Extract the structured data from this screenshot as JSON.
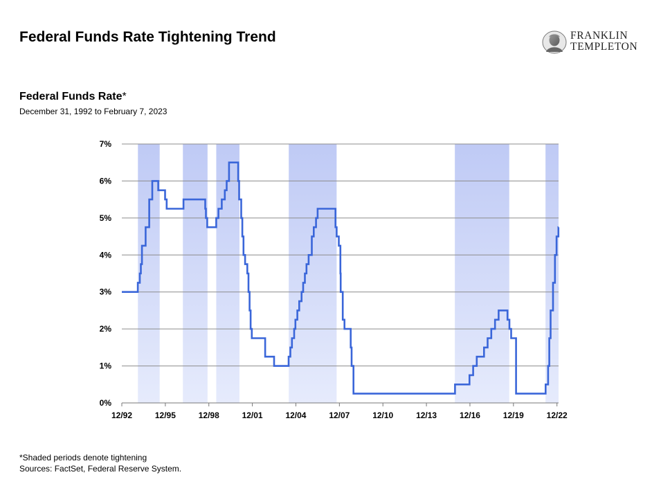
{
  "header": {
    "title": "Federal Funds Rate Tightening Trend",
    "logo_line1": "FRANKLIN",
    "logo_line2": "TEMPLETON"
  },
  "chart_data": {
    "type": "line",
    "title": "Federal Funds Rate",
    "title_suffix": "*",
    "subtitle": "December 31, 1992 to February 7, 2023",
    "xlabel": "",
    "ylabel": "",
    "xlim": [
      1992.99,
      2023.1
    ],
    "ylim": [
      0,
      7
    ],
    "grid": true,
    "line_color": "#3a66d9",
    "shade_color": "#bfcaf5",
    "x_ticks": [
      1992.99,
      1995.99,
      1998.99,
      2001.99,
      2004.99,
      2007.99,
      2010.99,
      2013.99,
      2016.99,
      2019.99,
      2022.99
    ],
    "x_tick_labels": [
      "12/92",
      "12/95",
      "12/98",
      "12/01",
      "12/04",
      "12/07",
      "12/10",
      "12/13",
      "12/16",
      "12/19",
      "12/22"
    ],
    "y_ticks": [
      0,
      1,
      2,
      3,
      4,
      5,
      6,
      7
    ],
    "y_tick_labels": [
      "0%",
      "1%",
      "2%",
      "3%",
      "4%",
      "5%",
      "6%",
      "7%"
    ],
    "tightening_periods": [
      [
        1994.1,
        1995.6
      ],
      [
        1997.2,
        1998.9
      ],
      [
        1999.5,
        2001.1
      ],
      [
        2004.5,
        2007.8
      ],
      [
        2015.95,
        2019.7
      ],
      [
        2022.2,
        2023.1
      ]
    ],
    "series": [
      {
        "points": [
          [
            1992.99,
            3.0
          ],
          [
            1994.09,
            3.25
          ],
          [
            1994.23,
            3.5
          ],
          [
            1994.3,
            3.75
          ],
          [
            1994.38,
            4.25
          ],
          [
            1994.63,
            4.75
          ],
          [
            1994.88,
            5.5
          ],
          [
            1995.09,
            6.0
          ],
          [
            1995.5,
            5.75
          ],
          [
            1995.97,
            5.5
          ],
          [
            1996.08,
            5.25
          ],
          [
            1997.24,
            5.5
          ],
          [
            1998.74,
            5.25
          ],
          [
            1998.79,
            5.0
          ],
          [
            1998.88,
            4.75
          ],
          [
            1999.5,
            5.0
          ],
          [
            1999.65,
            5.25
          ],
          [
            1999.88,
            5.5
          ],
          [
            2000.09,
            5.75
          ],
          [
            2000.22,
            6.0
          ],
          [
            2000.38,
            6.5
          ],
          [
            2001.01,
            6.0
          ],
          [
            2001.08,
            5.5
          ],
          [
            2001.22,
            5.0
          ],
          [
            2001.3,
            4.5
          ],
          [
            2001.38,
            4.0
          ],
          [
            2001.49,
            3.75
          ],
          [
            2001.64,
            3.5
          ],
          [
            2001.72,
            3.0
          ],
          [
            2001.8,
            2.5
          ],
          [
            2001.87,
            2.0
          ],
          [
            2001.95,
            1.75
          ],
          [
            2002.87,
            1.25
          ],
          [
            2003.49,
            1.0
          ],
          [
            2004.49,
            1.25
          ],
          [
            2004.61,
            1.5
          ],
          [
            2004.72,
            1.75
          ],
          [
            2004.87,
            2.0
          ],
          [
            2004.96,
            2.25
          ],
          [
            2005.09,
            2.5
          ],
          [
            2005.22,
            2.75
          ],
          [
            2005.38,
            3.0
          ],
          [
            2005.49,
            3.25
          ],
          [
            2005.61,
            3.5
          ],
          [
            2005.72,
            3.75
          ],
          [
            2005.87,
            4.0
          ],
          [
            2006.09,
            4.5
          ],
          [
            2006.22,
            4.75
          ],
          [
            2006.38,
            5.0
          ],
          [
            2006.49,
            5.25
          ],
          [
            2007.72,
            4.75
          ],
          [
            2007.8,
            4.5
          ],
          [
            2007.95,
            4.25
          ],
          [
            2008.06,
            3.5
          ],
          [
            2008.08,
            3.0
          ],
          [
            2008.22,
            2.25
          ],
          [
            2008.34,
            2.0
          ],
          [
            2008.77,
            1.5
          ],
          [
            2008.83,
            1.0
          ],
          [
            2008.96,
            0.25
          ],
          [
            2015.96,
            0.5
          ],
          [
            2016.96,
            0.75
          ],
          [
            2017.21,
            1.0
          ],
          [
            2017.46,
            1.25
          ],
          [
            2017.96,
            1.5
          ],
          [
            2018.21,
            1.75
          ],
          [
            2018.46,
            2.0
          ],
          [
            2018.72,
            2.25
          ],
          [
            2018.97,
            2.5
          ],
          [
            2019.58,
            2.25
          ],
          [
            2019.71,
            2.0
          ],
          [
            2019.83,
            1.75
          ],
          [
            2020.17,
            0.25
          ],
          [
            2022.21,
            0.5
          ],
          [
            2022.38,
            1.0
          ],
          [
            2022.46,
            1.75
          ],
          [
            2022.55,
            2.5
          ],
          [
            2022.72,
            3.25
          ],
          [
            2022.85,
            4.0
          ],
          [
            2022.96,
            4.5
          ],
          [
            2023.09,
            4.75
          ]
        ]
      }
    ]
  },
  "footer": {
    "note": "*Shaded periods denote tightening",
    "sources": "Sources: FactSet, Federal Reserve System."
  }
}
